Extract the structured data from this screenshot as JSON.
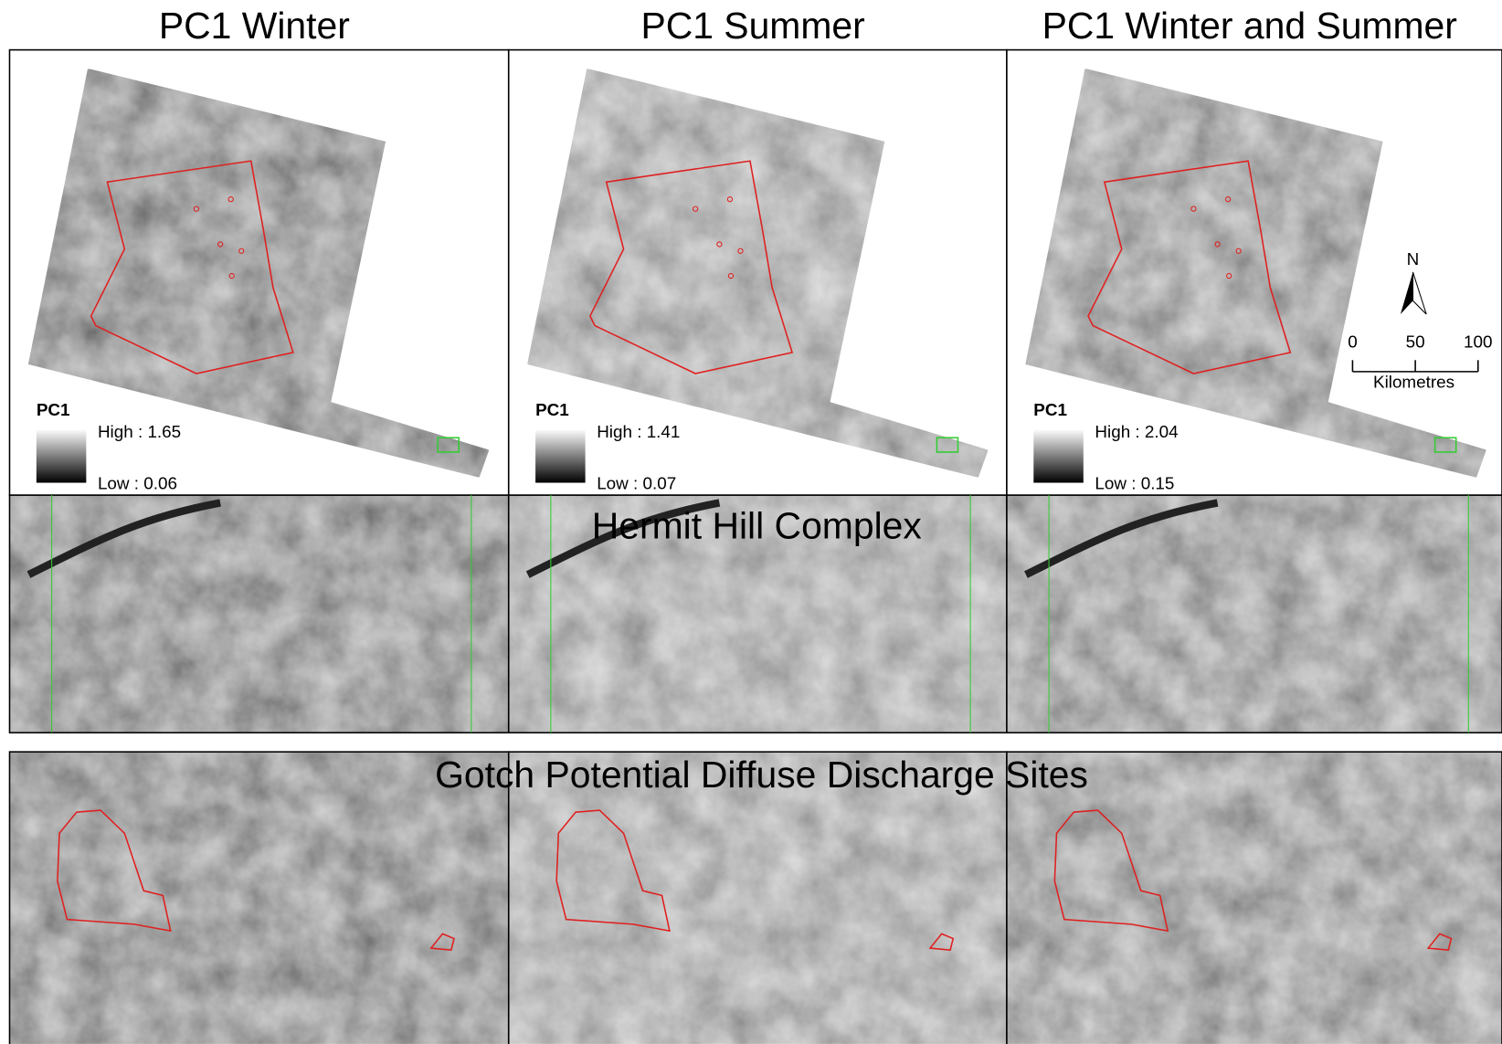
{
  "titles": [
    "PC1 Winter",
    "PC1 Summer",
    "PC1 Winter and Summer"
  ],
  "panels": [
    {
      "legend_title": "PC1",
      "high": "High : 1.65",
      "low": "Low : 0.06"
    },
    {
      "legend_title": "PC1",
      "high": "High : 1.41",
      "low": "Low : 0.07"
    },
    {
      "legend_title": "PC1",
      "high": "High : 2.04",
      "low": "Low : 0.15"
    }
  ],
  "zoom_titles": [
    "Hermit Hill Complex",
    "Gotch Potential Diffuse Discharge Sites"
  ],
  "north": "N",
  "scale_bar": {
    "ticks": [
      0,
      50,
      100
    ],
    "unit": "Kilometres"
  }
}
